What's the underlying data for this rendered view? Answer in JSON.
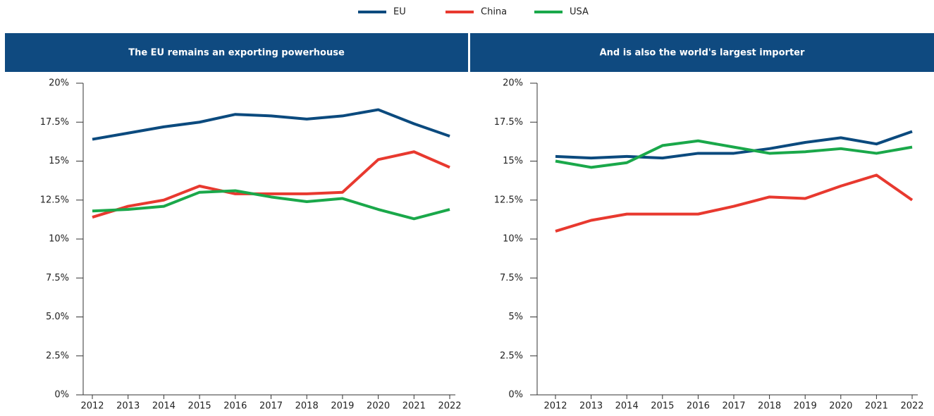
{
  "chart_data": [
    {
      "type": "line",
      "title": "The EU remains an exporting powerhouse",
      "categories": [
        "2012",
        "2013",
        "2014",
        "2015",
        "2016",
        "2017",
        "2018",
        "2019",
        "2020",
        "2021",
        "2022"
      ],
      "series": [
        {
          "name": "EU",
          "color": "#0b4a7e",
          "values": [
            16.4,
            16.8,
            17.2,
            17.5,
            18.0,
            17.9,
            17.7,
            17.9,
            18.3,
            17.4,
            16.6
          ]
        },
        {
          "name": "China",
          "color": "#e8392f",
          "values": [
            11.4,
            12.1,
            12.5,
            13.4,
            12.9,
            12.9,
            12.9,
            13.0,
            15.1,
            15.6,
            14.6
          ]
        },
        {
          "name": "USA",
          "color": "#1aa84a",
          "values": [
            11.8,
            11.9,
            12.1,
            13.0,
            13.1,
            12.7,
            12.4,
            12.6,
            11.9,
            11.3,
            11.9
          ]
        }
      ],
      "ylim": [
        0,
        20
      ],
      "yticks": [
        {
          "value": 0,
          "label": "0%"
        },
        {
          "value": 2.5,
          "label": "2.5%"
        },
        {
          "value": 5,
          "label": "5.0%"
        },
        {
          "value": 7.5,
          "label": "7.5%"
        },
        {
          "value": 10,
          "label": "10%"
        },
        {
          "value": 12.5,
          "label": "12.5%"
        },
        {
          "value": 15,
          "label": "15%"
        },
        {
          "value": 17.5,
          "label": "17.5%"
        },
        {
          "value": 20,
          "label": "20%"
        }
      ]
    },
    {
      "type": "line",
      "title": "And is also the world's largest importer",
      "categories": [
        "2012",
        "2013",
        "2014",
        "2015",
        "2016",
        "2017",
        "2018",
        "2019",
        "2020",
        "2021",
        "2022"
      ],
      "series": [
        {
          "name": "EU",
          "color": "#0b4a7e",
          "values": [
            15.3,
            15.2,
            15.3,
            15.2,
            15.5,
            15.5,
            15.8,
            16.2,
            16.5,
            16.1,
            16.9
          ]
        },
        {
          "name": "China",
          "color": "#e8392f",
          "values": [
            10.5,
            11.2,
            11.6,
            11.6,
            11.6,
            12.1,
            12.7,
            12.6,
            13.4,
            14.1,
            12.5
          ]
        },
        {
          "name": "USA",
          "color": "#1aa84a",
          "values": [
            15.0,
            14.6,
            14.9,
            16.0,
            16.3,
            15.9,
            15.5,
            15.6,
            15.8,
            15.5,
            15.9
          ]
        }
      ],
      "ylim": [
        0,
        20
      ],
      "yticks": [
        {
          "value": 0,
          "label": "0%"
        },
        {
          "value": 2.5,
          "label": "2.5%"
        },
        {
          "value": 5,
          "label": "5%"
        },
        {
          "value": 7.5,
          "label": "7.5%"
        },
        {
          "value": 10,
          "label": "10%"
        },
        {
          "value": 12.5,
          "label": "12.5%"
        },
        {
          "value": 15,
          "label": "15%"
        },
        {
          "value": 17.5,
          "label": "17.5%"
        },
        {
          "value": 20,
          "label": "20%"
        }
      ]
    }
  ]
}
